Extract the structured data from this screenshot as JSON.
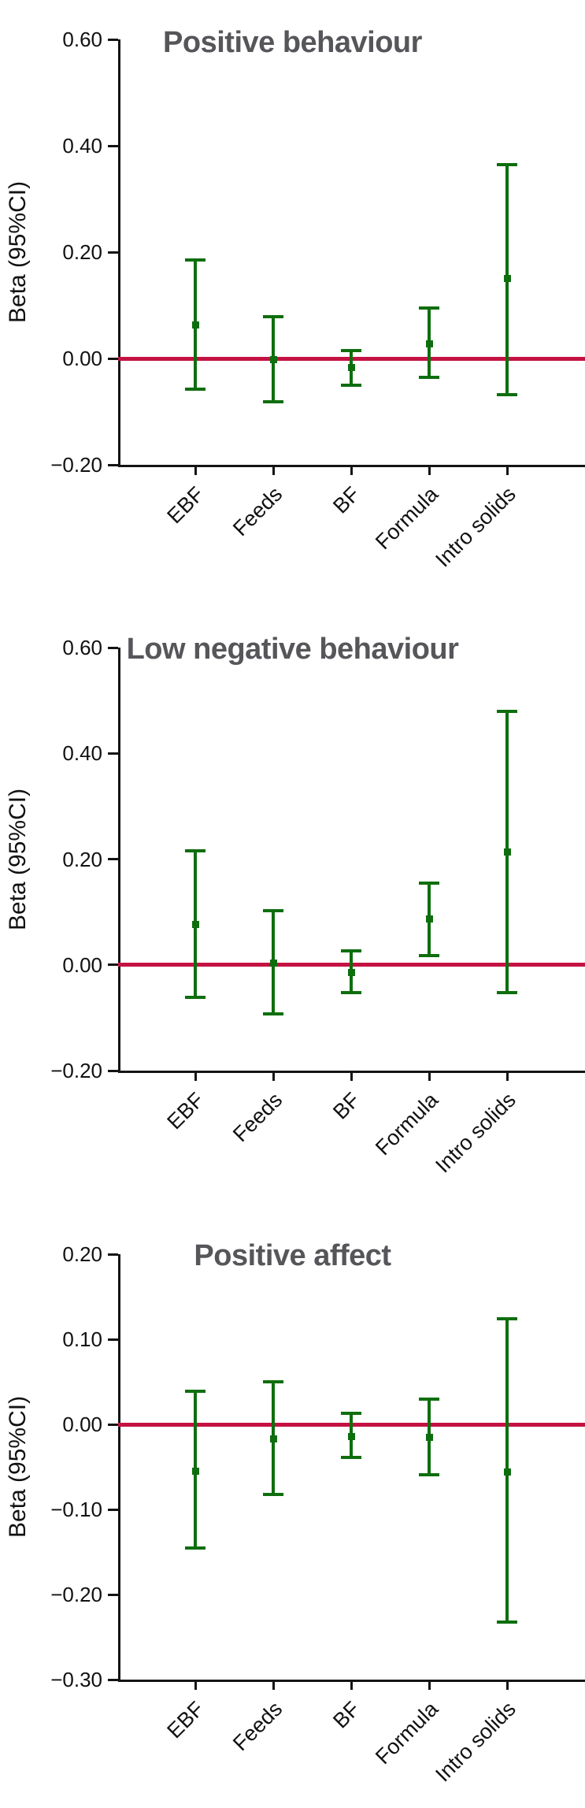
{
  "figure": {
    "background": "#ffffff"
  },
  "colors": {
    "series_green": "#0e6e0e",
    "reference_red": "#c41243",
    "axis_black": "#141414",
    "title_gray": "#56565a"
  },
  "chart_data": [
    {
      "type": "errorbar",
      "title": "Positive behaviour",
      "ylabel": "Beta (95%CI)",
      "categories": [
        "EBF",
        "Feeds",
        "BF",
        "Formula",
        "Intro solids"
      ],
      "estimates": [
        0.063,
        -0.002,
        -0.017,
        0.028,
        0.15
      ],
      "ci_low": [
        -0.058,
        -0.082,
        -0.05,
        -0.036,
        -0.068
      ],
      "ci_high": [
        0.185,
        0.078,
        0.015,
        0.095,
        0.365
      ],
      "ylim": [
        -0.2,
        0.6
      ],
      "ytick_step": 0.2,
      "reference_line": 0,
      "grid": false,
      "legend": "none"
    },
    {
      "type": "errorbar",
      "title": "Low negative behaviour",
      "ylabel": "Beta (95%CI)",
      "categories": [
        "EBF",
        "Feeds",
        "BF",
        "Formula",
        "Intro solids"
      ],
      "estimates": [
        0.076,
        0.003,
        -0.015,
        0.087,
        0.213
      ],
      "ci_low": [
        -0.061,
        -0.093,
        -0.053,
        0.017,
        -0.053
      ],
      "ci_high": [
        0.215,
        0.103,
        0.026,
        0.155,
        0.48
      ],
      "ylim": [
        -0.2,
        0.6
      ],
      "ytick_step": 0.2,
      "reference_line": 0,
      "grid": false,
      "legend": "none"
    },
    {
      "type": "errorbar",
      "title": "Positive affect",
      "ylabel": "Beta (95%CI)",
      "categories": [
        "EBF",
        "Feeds",
        "BF",
        "Formula",
        "Intro solids"
      ],
      "estimates": [
        -0.055,
        -0.017,
        -0.014,
        -0.015,
        -0.056
      ],
      "ci_low": [
        -0.145,
        -0.082,
        -0.039,
        -0.059,
        -0.232
      ],
      "ci_high": [
        0.039,
        0.05,
        0.013,
        0.03,
        0.124
      ],
      "ylim": [
        -0.3,
        0.2
      ],
      "ytick_step": 0.1,
      "reference_line": 0,
      "grid": false,
      "legend": "none"
    }
  ]
}
